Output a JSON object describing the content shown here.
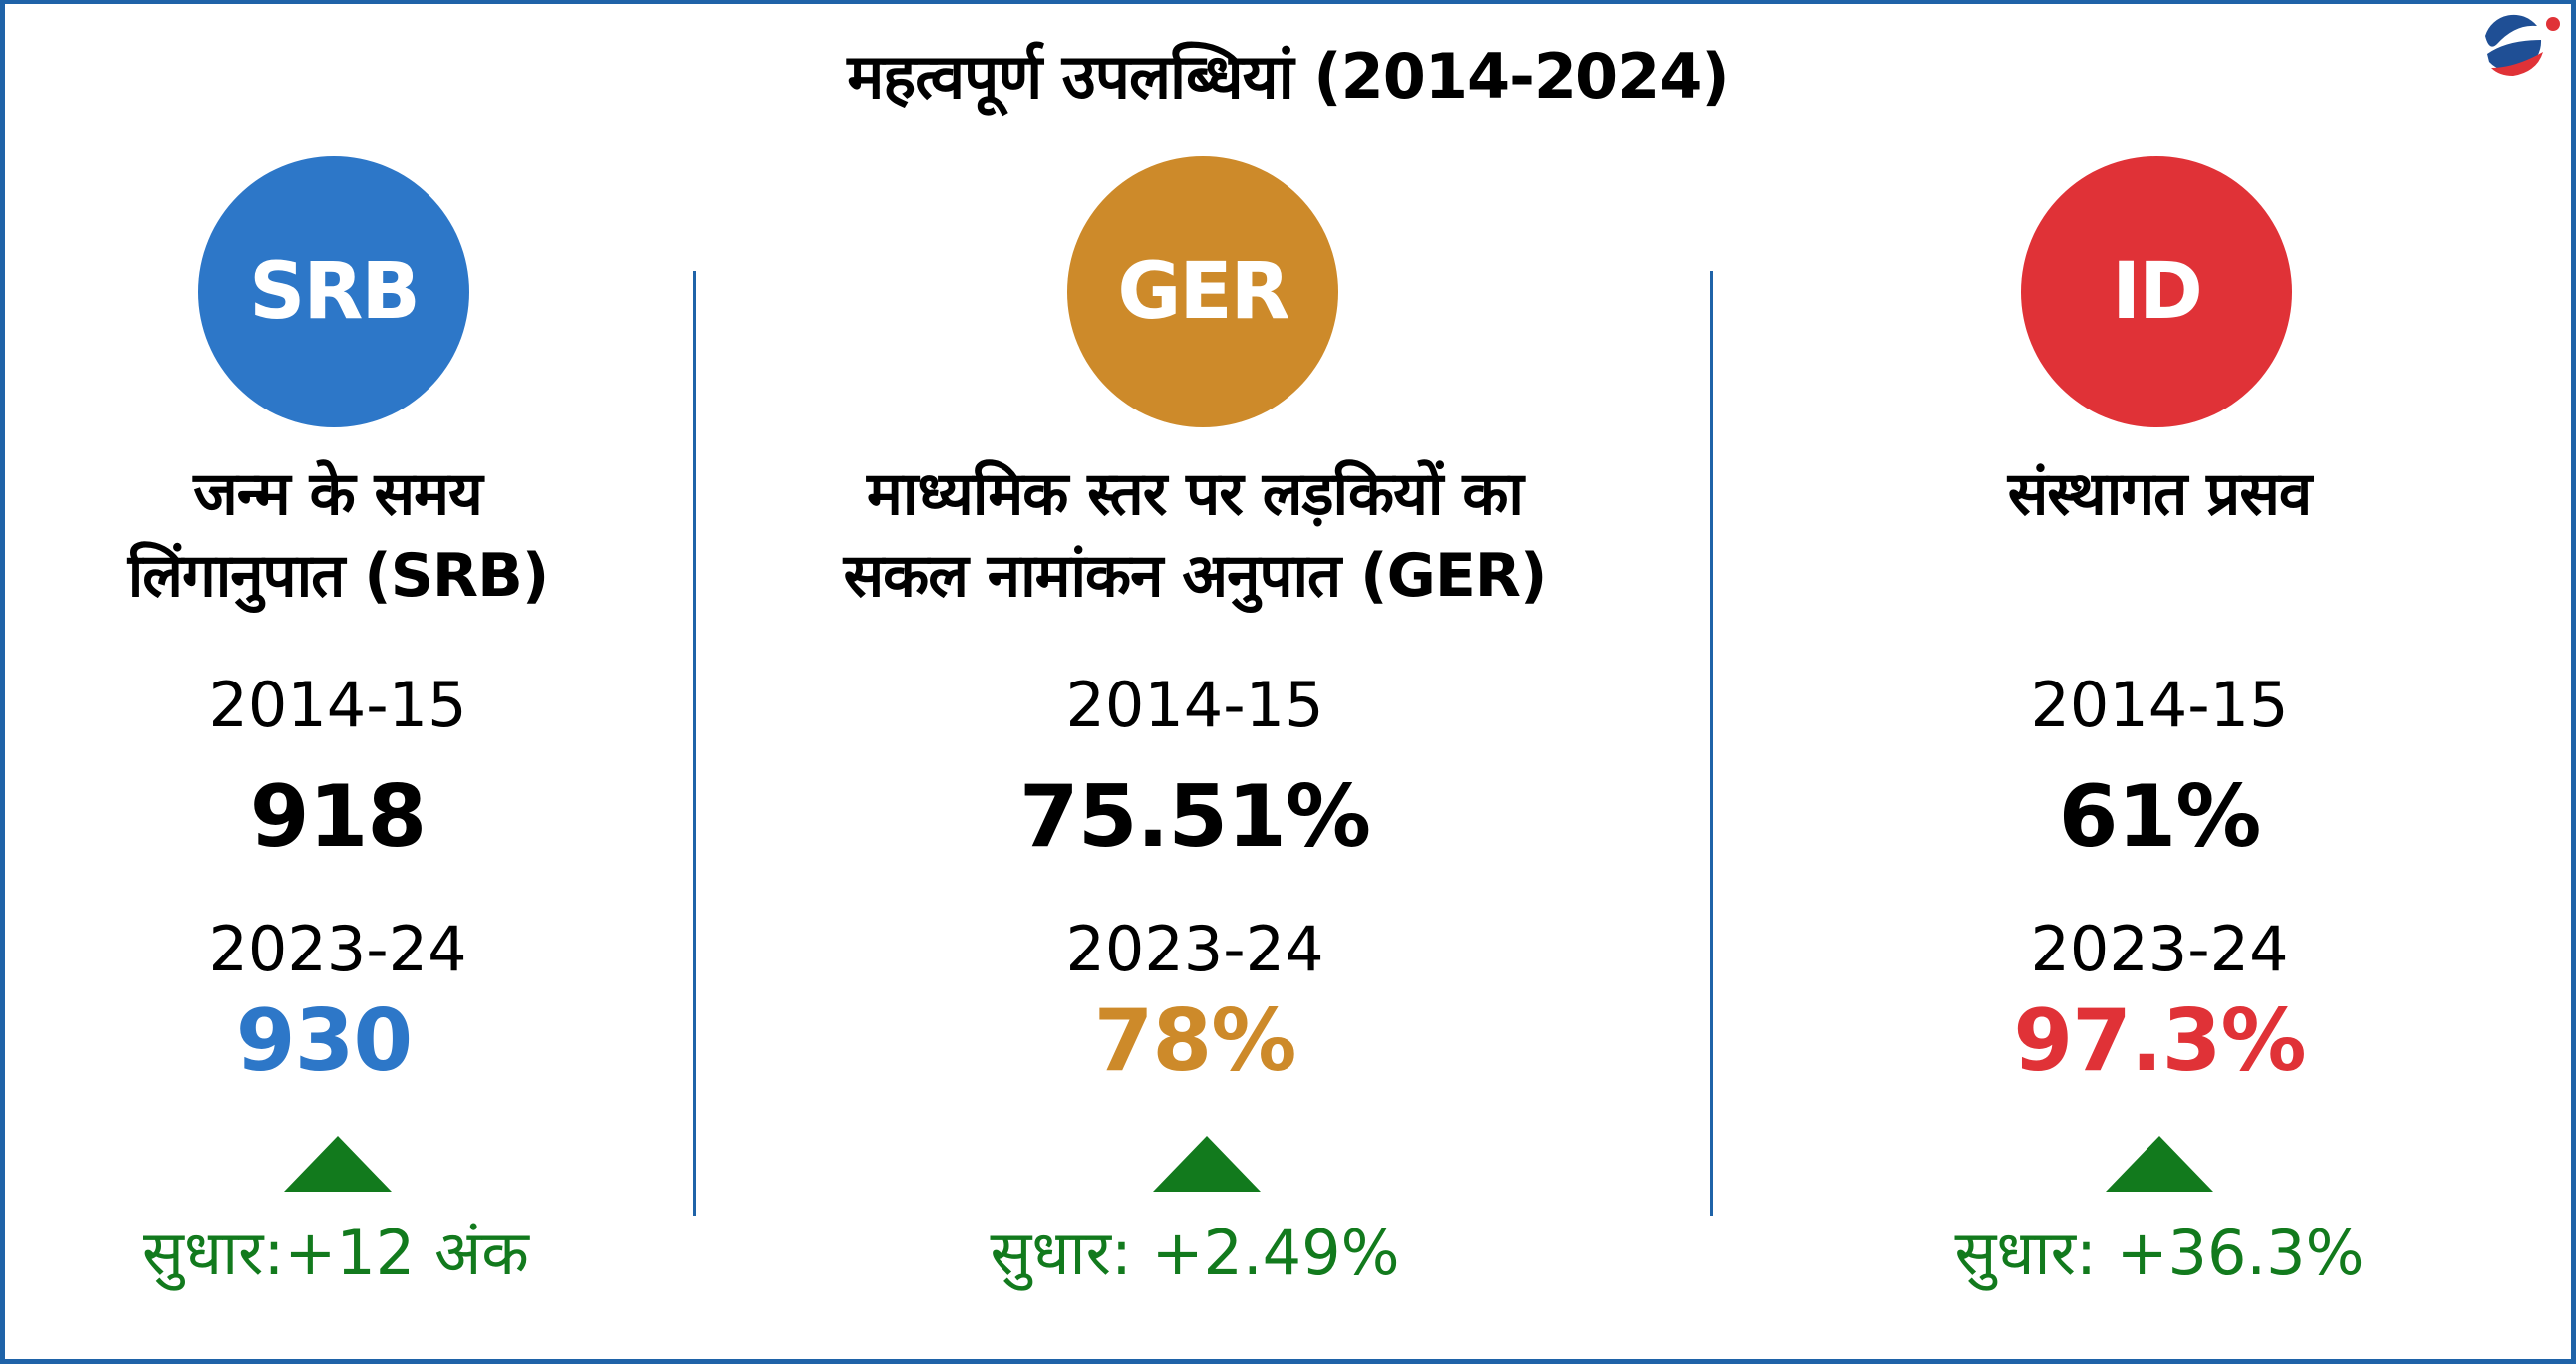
{
  "title": "महत्वपूर्ण उपलब्धियां (2014-2024)",
  "logo_icon": "brand-globe-logo",
  "colors": {
    "border": "#1f63a8",
    "srb": "#2d77c8",
    "ger": "#cd8a2a",
    "id": "#e03237",
    "improvement": "#127a1d"
  },
  "cards": [
    {
      "badge": "SRB",
      "heading_line1": "जन्म के समय",
      "heading_line2": "लिंगानुपात (SRB)",
      "year1": "2014-15",
      "value1": "918",
      "year2": "2023-24",
      "value2": "930",
      "arrow_icon": "up-triangle-icon",
      "improvement": "सुधार:+12 अंक"
    },
    {
      "badge": "GER",
      "heading_line1": "माध्यमिक स्तर पर लड़कियों का",
      "heading_line2": "सकल नामांकन अनुपात (GER)",
      "year1": "2014-15",
      "value1": "75.51%",
      "year2": "2023-24",
      "value2": "78%",
      "arrow_icon": "up-triangle-icon",
      "improvement": "सुधार: +2.49%"
    },
    {
      "badge": "ID",
      "heading_line1": "संस्थागत प्रसव",
      "heading_line2": "",
      "year1": "2014-15",
      "value1": "61%",
      "year2": "2023-24",
      "value2": "97.3%",
      "arrow_icon": "up-triangle-icon",
      "improvement": "सुधार: +36.3%"
    }
  ]
}
